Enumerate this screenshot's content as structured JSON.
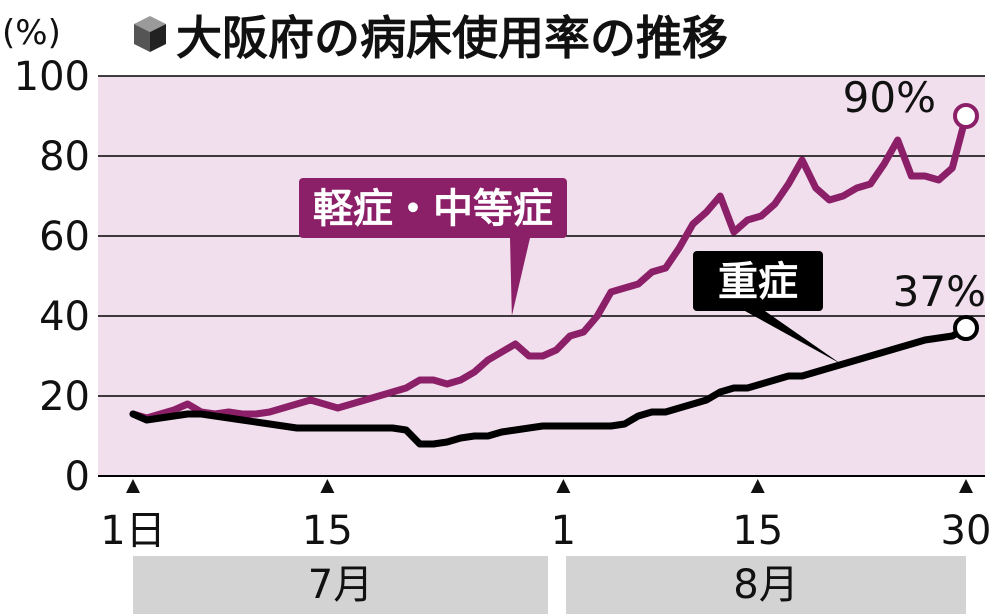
{
  "title": "大阪府の病床使用率の推移",
  "unit": "(%)",
  "colors": {
    "plot_bg": "#f1dfee",
    "mild": "#8b1f68",
    "severe": "#000000",
    "month_band": "#d3d3d3",
    "grid": "#000000"
  },
  "chart_data": {
    "type": "line",
    "ylim": [
      0,
      100
    ],
    "yticks": [
      "0",
      "20",
      "40",
      "60",
      "80",
      "100"
    ],
    "xlim": [
      1,
      61
    ],
    "xticks": [
      {
        "x": 1,
        "label": "1日"
      },
      {
        "x": 15,
        "label": "15"
      },
      {
        "x": 32,
        "label": "1"
      },
      {
        "x": 46,
        "label": "15"
      },
      {
        "x": 61,
        "label": "30"
      }
    ],
    "months": [
      {
        "label": "7月",
        "start": 1,
        "end": 31
      },
      {
        "label": "8月",
        "start": 32,
        "end": 61
      }
    ],
    "grid": true,
    "series": [
      {
        "name": "軽症・中等症",
        "end_label": "90%",
        "values": [
          15.5,
          14.5,
          15.5,
          16.5,
          18,
          16,
          15.5,
          16,
          15.5,
          15.5,
          16,
          17,
          18,
          19,
          18,
          17,
          18,
          19,
          20,
          21,
          22,
          24,
          24,
          23,
          24,
          26,
          29,
          31,
          33,
          30,
          30,
          31.5,
          35,
          36,
          40,
          46,
          47,
          48,
          51,
          52,
          57,
          63,
          66,
          70,
          61,
          64,
          65,
          68,
          73,
          79,
          72,
          69,
          70,
          72,
          73,
          78,
          84,
          75,
          75,
          74,
          77,
          90
        ],
        "x_offset": 0
      },
      {
        "name": "重症",
        "end_label": "37%",
        "values": [
          15.5,
          14,
          14.5,
          15,
          15.5,
          15.5,
          15,
          14.5,
          14,
          13.5,
          13,
          12.5,
          12,
          12,
          12,
          12,
          12,
          12,
          12,
          12,
          11.5,
          8,
          8,
          8.5,
          9.5,
          10,
          10,
          11,
          11.5,
          12,
          12.5,
          12.5,
          12.5,
          12.5,
          12.5,
          12.5,
          13,
          15,
          16,
          16,
          17,
          18,
          19,
          21,
          22,
          22,
          23,
          24,
          25,
          25,
          26,
          27,
          28,
          29,
          30,
          31,
          32,
          33,
          34,
          34.5,
          35,
          37
        ],
        "x_offset": 0
      }
    ]
  }
}
